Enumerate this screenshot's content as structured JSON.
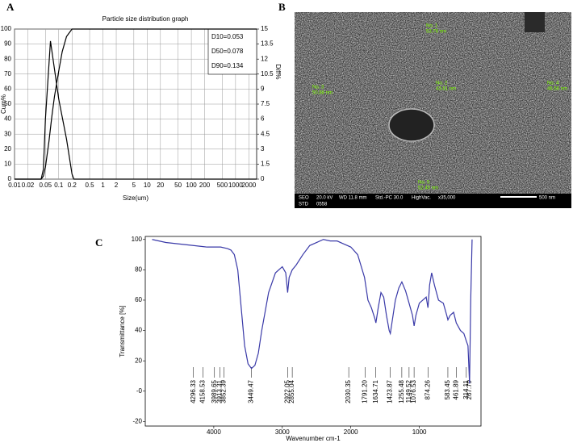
{
  "panel_labels": [
    "A",
    "B",
    "C"
  ],
  "chart_data": [
    {
      "type": "line",
      "title": "Particle size distribution graph",
      "xlabel": "Size(um)",
      "ylabel": "Cum%",
      "y2label": "Diff%",
      "xscale": "log",
      "grid": true,
      "xlim": [
        0.01,
        3000
      ],
      "xticks": [
        0.01,
        0.02,
        0.05,
        0.1,
        0.2,
        0.5,
        1,
        2,
        5,
        10,
        20,
        50,
        100,
        200,
        500,
        1000,
        2000
      ],
      "ylim": [
        0,
        100
      ],
      "yticks": [
        0,
        10,
        20,
        30,
        40,
        50,
        60,
        70,
        80,
        90,
        100
      ],
      "y2lim": [
        0,
        15
      ],
      "y2ticks": [
        0,
        1.5,
        3,
        4.5,
        6,
        7.5,
        9,
        10.5,
        12,
        13.5,
        15
      ],
      "annotations": [
        "D10=0.053",
        "D50=0.078",
        "D90=0.134"
      ],
      "series": [
        {
          "color": "#000000",
          "x": [
            0.01,
            0.04,
            0.045,
            0.05,
            0.06,
            0.07,
            0.08,
            0.1,
            0.12,
            0.15,
            0.2,
            3000
          ],
          "values": [
            0,
            0,
            2,
            8,
            25,
            42,
            55,
            72,
            85,
            95,
            100,
            100
          ]
        },
        {
          "color": "#000000",
          "axis": "y2",
          "x": [
            0.01,
            0.04,
            0.045,
            0.05,
            0.065,
            0.08,
            0.1,
            0.15,
            0.2,
            0.22,
            3000
          ],
          "values": [
            0,
            0,
            1,
            6,
            13.8,
            11,
            8,
            4,
            0.5,
            0,
            0
          ]
        }
      ]
    },
    {
      "type": "line",
      "xlabel": "Wavenumber cm-1",
      "ylabel": "Transmittance [%]",
      "xlim": [
        5000,
        100
      ],
      "xticks": [
        4000,
        3000,
        2000,
        1000
      ],
      "ylim": [
        -23,
        102
      ],
      "yticks": [
        100,
        80,
        60,
        40,
        20,
        {
          "value": 0,
          "label": "-0"
        },
        -20
      ],
      "peaks": [
        4296.33,
        4158.53,
        3989.65,
        3913.31,
        3852.39,
        3449.47,
        2922.05,
        2855.04,
        2030.35,
        {
          "value": 1791.2,
          "label": "1791.20"
        },
        1634.71,
        1423.87,
        1255.48,
        1149.52,
        1076.53,
        874.26,
        583.45,
        461.89,
        314.11,
        267.79
      ],
      "series": [
        {
          "color": "#3a3aa8",
          "x": [
            4900,
            4700,
            4500,
            4300,
            4100,
            3900,
            3800,
            3750,
            3700,
            3650,
            3600,
            3550,
            3500,
            3450,
            3400,
            3350,
            3300,
            3200,
            3100,
            3000,
            2950,
            2922,
            2900,
            2855,
            2800,
            2700,
            2600,
            2500,
            2400,
            2300,
            2200,
            2100,
            2000,
            1900,
            1800,
            1750,
            1700,
            1650,
            1634,
            1600,
            1560,
            1520,
            1480,
            1440,
            1423,
            1400,
            1350,
            1300,
            1255,
            1200,
            1150,
            1100,
            1076,
            1050,
            1000,
            950,
            900,
            874,
            850,
            820,
            780,
            720,
            650,
            600,
            583,
            550,
            500,
            461,
            400,
            350,
            314,
            290,
            267,
            250,
            230
          ],
          "values": [
            100,
            98,
            97,
            96,
            95,
            95,
            94,
            93,
            90,
            80,
            55,
            30,
            18,
            15,
            17,
            25,
            40,
            65,
            78,
            82,
            78,
            65,
            75,
            80,
            83,
            90,
            96,
            98,
            100,
            99,
            99,
            97,
            95,
            90,
            75,
            60,
            55,
            48,
            45,
            55,
            65,
            62,
            50,
            40,
            38,
            45,
            60,
            68,
            72,
            66,
            58,
            50,
            43,
            50,
            58,
            60,
            62,
            55,
            70,
            78,
            70,
            60,
            58,
            50,
            47,
            50,
            52,
            45,
            40,
            38,
            33,
            30,
            5,
            60,
            100
          ]
        }
      ]
    }
  ],
  "sem_image": {
    "annotations": [
      "No. 1",
      "53.76 nm",
      "No. 2",
      "43.61 nm",
      "No. 3",
      "50.88 nm",
      "No. 4",
      "46.56 nm",
      "No. 5",
      "52.40 nm"
    ],
    "info_bar": [
      "SEO",
      "20.0 kV",
      "WD 11.8 mm",
      "Std.-PC 30.0",
      "HighVac.",
      "x35,000",
      "500 nm",
      "STD",
      "0558"
    ]
  }
}
